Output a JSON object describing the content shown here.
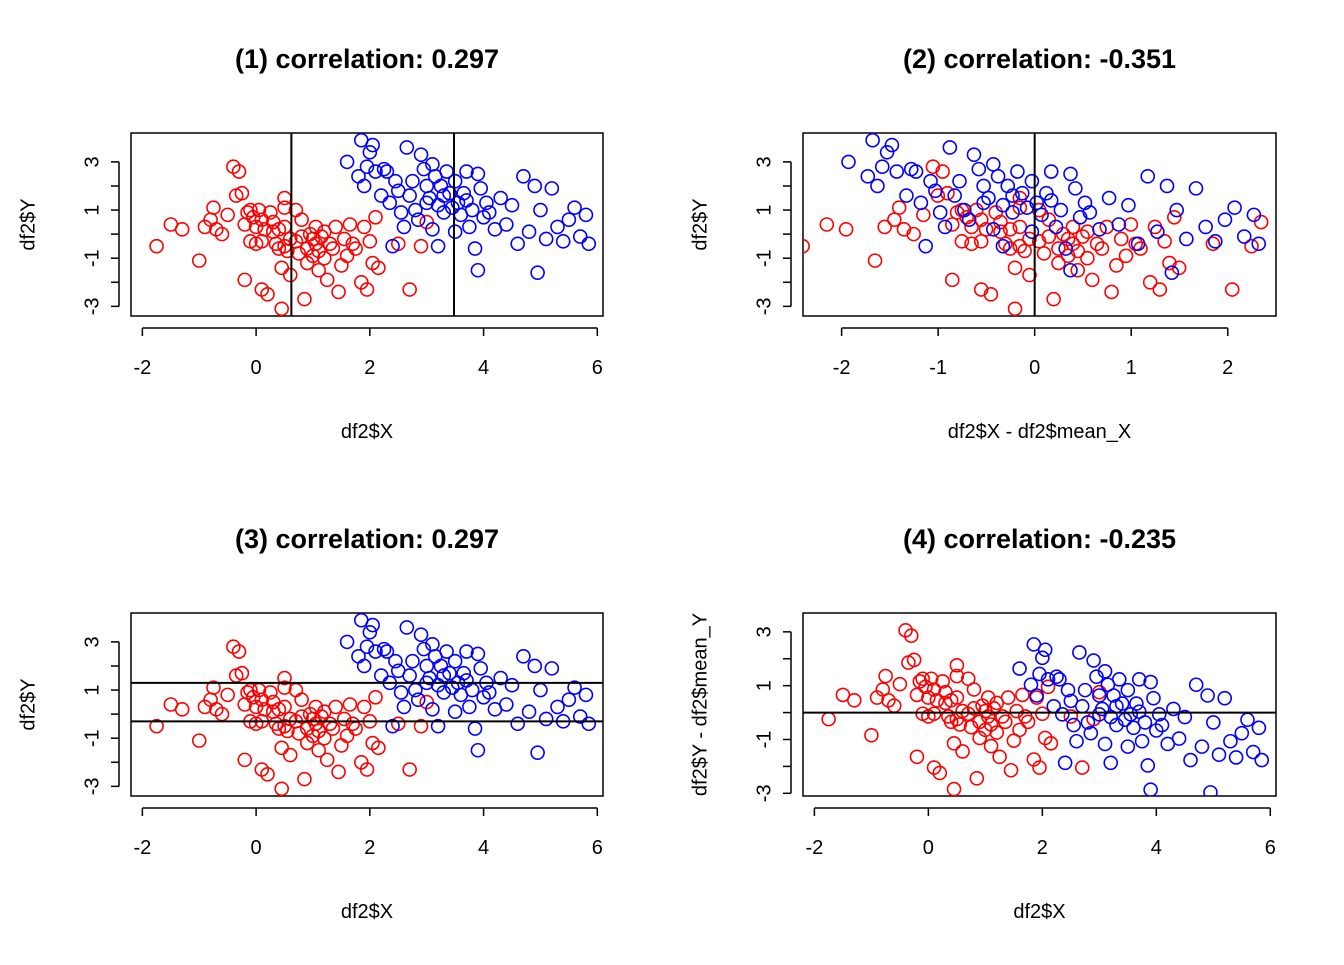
{
  "figure": {
    "colors": {
      "red": "#ff0000",
      "blue": "#0000ff"
    },
    "panels": [
      {
        "title": "(1) correlation: 0.297",
        "xlabel": "df2$X",
        "ylabel": "df2$Y",
        "xticks": [
          -2,
          0,
          2,
          4,
          6
        ],
        "yticks": [
          -3,
          -1,
          1,
          3
        ]
      },
      {
        "title": "(2) correlation: -0.351",
        "xlabel": "df2$X - df2$mean_X",
        "ylabel": "df2$Y",
        "xticks": [
          -2,
          -1,
          0,
          1,
          2
        ],
        "yticks": [
          -3,
          -1,
          1,
          3
        ]
      },
      {
        "title": "(3) correlation: 0.297",
        "xlabel": "df2$X",
        "ylabel": "df2$Y",
        "xticks": [
          -2,
          0,
          2,
          4,
          6
        ],
        "yticks": [
          -3,
          -1,
          1,
          3
        ]
      },
      {
        "title": "(4) correlation: -0.235",
        "xlabel": "df2$X",
        "ylabel": "df2$Y - df2$mean_Y",
        "xticks": [
          -2,
          0,
          2,
          4,
          6
        ],
        "yticks": [
          -3,
          -1,
          1,
          3
        ]
      }
    ]
  },
  "chart_data": [
    {
      "type": "scatter",
      "title": "(1) correlation: 0.297",
      "xlabel": "df2$X",
      "ylabel": "df2$Y",
      "xlim": [
        -2.2,
        6.1
      ],
      "ylim": [
        -3.4,
        4.2
      ],
      "grid": false,
      "vlines": [
        0.62,
        3.48
      ],
      "series": []
    },
    {
      "type": "scatter",
      "title": "(2) correlation: -0.351",
      "xlabel": "df2$X - df2$mean_X",
      "ylabel": "df2$Y",
      "xlim": [
        -2.4,
        2.5
      ],
      "ylim": [
        -3.4,
        4.2
      ],
      "grid": false,
      "vlines": [
        0
      ],
      "series": []
    },
    {
      "type": "scatter",
      "title": "(3) correlation: 0.297",
      "xlabel": "df2$X",
      "ylabel": "df2$Y",
      "xlim": [
        -2.2,
        6.1
      ],
      "ylim": [
        -3.4,
        4.2
      ],
      "grid": false,
      "hlines": [
        -0.3,
        1.3
      ],
      "series": []
    },
    {
      "type": "scatter",
      "title": "(4) correlation: -0.235",
      "xlabel": "df2$X",
      "ylabel": "df2$Y - df2$mean_Y",
      "xlim": [
        -2.2,
        6.1
      ],
      "ylim": [
        -3.1,
        3.7
      ],
      "grid": false,
      "hlines": [
        0
      ],
      "series": []
    }
  ],
  "points": {
    "red": [
      [
        -1.75,
        -0.5
      ],
      [
        -1.5,
        0.4
      ],
      [
        -1.3,
        0.2
      ],
      [
        -1.0,
        -1.1
      ],
      [
        -0.9,
        0.3
      ],
      [
        -0.8,
        0.6
      ],
      [
        -0.75,
        1.1
      ],
      [
        -0.7,
        0.2
      ],
      [
        -0.6,
        0.0
      ],
      [
        -0.5,
        0.8
      ],
      [
        -0.4,
        2.8
      ],
      [
        -0.35,
        1.6
      ],
      [
        -0.3,
        2.6
      ],
      [
        -0.25,
        1.7
      ],
      [
        -0.2,
        0.4
      ],
      [
        -0.2,
        -1.9
      ],
      [
        -0.15,
        0.9
      ],
      [
        -0.1,
        1.0
      ],
      [
        -0.1,
        -0.3
      ],
      [
        -0.05,
        0.7
      ],
      [
        0.0,
        0.3
      ],
      [
        0.0,
        -0.4
      ],
      [
        0.05,
        1.0
      ],
      [
        0.1,
        0.6
      ],
      [
        0.1,
        -0.3
      ],
      [
        0.1,
        -2.3
      ],
      [
        0.15,
        0.2
      ],
      [
        0.2,
        -2.5
      ],
      [
        0.25,
        0.9
      ],
      [
        0.3,
        0.5
      ],
      [
        0.3,
        0.1
      ],
      [
        0.35,
        -0.4
      ],
      [
        0.4,
        0.2
      ],
      [
        0.4,
        -0.6
      ],
      [
        0.45,
        -3.1
      ],
      [
        0.45,
        -1.4
      ],
      [
        0.5,
        1.5
      ],
      [
        0.5,
        1.1
      ],
      [
        0.5,
        0.3
      ],
      [
        0.5,
        -0.5
      ],
      [
        0.55,
        -0.7
      ],
      [
        0.6,
        -1.7
      ],
      [
        0.6,
        -0.2
      ],
      [
        0.7,
        1.0
      ],
      [
        0.7,
        -0.3
      ],
      [
        0.75,
        -0.8
      ],
      [
        0.8,
        0.6
      ],
      [
        0.8,
        -0.1
      ],
      [
        0.85,
        -2.7
      ],
      [
        0.9,
        -1.2
      ],
      [
        0.9,
        -0.6
      ],
      [
        0.95,
        0.0
      ],
      [
        1.0,
        -0.2
      ],
      [
        1.0,
        -0.9
      ],
      [
        1.05,
        0.3
      ],
      [
        1.05,
        -0.4
      ],
      [
        1.1,
        -1.5
      ],
      [
        1.1,
        -0.7
      ],
      [
        1.15,
        -0.1
      ],
      [
        1.2,
        0.1
      ],
      [
        1.2,
        -1.0
      ],
      [
        1.25,
        -1.9
      ],
      [
        1.3,
        -0.4
      ],
      [
        1.35,
        -0.6
      ],
      [
        1.4,
        0.3
      ],
      [
        1.45,
        -2.4
      ],
      [
        1.5,
        -1.3
      ],
      [
        1.55,
        -0.2
      ],
      [
        1.6,
        -0.9
      ],
      [
        1.65,
        0.4
      ],
      [
        1.7,
        -0.4
      ],
      [
        1.75,
        -0.6
      ],
      [
        1.85,
        -2.0
      ],
      [
        1.9,
        0.3
      ],
      [
        1.95,
        -2.3
      ],
      [
        2.0,
        -0.3
      ],
      [
        2.05,
        -1.2
      ],
      [
        2.1,
        0.7
      ],
      [
        2.15,
        -1.4
      ],
      [
        2.5,
        -0.4
      ],
      [
        2.7,
        -2.3
      ],
      [
        2.9,
        -0.5
      ],
      [
        3.0,
        0.5
      ]
    ],
    "blue": [
      [
        1.6,
        3.0
      ],
      [
        1.8,
        2.4
      ],
      [
        1.85,
        3.9
      ],
      [
        1.9,
        2.0
      ],
      [
        1.95,
        2.8
      ],
      [
        2.0,
        3.4
      ],
      [
        2.05,
        3.7
      ],
      [
        2.1,
        2.6
      ],
      [
        2.2,
        1.6
      ],
      [
        2.25,
        2.7
      ],
      [
        2.3,
        2.6
      ],
      [
        2.35,
        1.3
      ],
      [
        2.4,
        -0.5
      ],
      [
        2.45,
        2.2
      ],
      [
        2.5,
        1.8
      ],
      [
        2.55,
        0.9
      ],
      [
        2.6,
        0.3
      ],
      [
        2.65,
        3.6
      ],
      [
        2.7,
        1.6
      ],
      [
        2.75,
        2.2
      ],
      [
        2.8,
        1.0
      ],
      [
        2.85,
        0.6
      ],
      [
        2.9,
        3.3
      ],
      [
        2.95,
        2.7
      ],
      [
        3.0,
        2.0
      ],
      [
        3.05,
        1.5
      ],
      [
        3.1,
        2.9
      ],
      [
        3.15,
        2.4
      ],
      [
        3.2,
        1.2
      ],
      [
        3.25,
        2.0
      ],
      [
        3.3,
        0.9
      ],
      [
        3.35,
        2.6
      ],
      [
        3.4,
        1.7
      ],
      [
        3.45,
        1.1
      ],
      [
        3.5,
        2.2
      ],
      [
        3.55,
        1.3
      ],
      [
        3.6,
        0.8
      ],
      [
        3.65,
        1.7
      ],
      [
        3.7,
        2.6
      ],
      [
        3.75,
        0.3
      ],
      [
        3.8,
        1.0
      ],
      [
        3.85,
        -0.6
      ],
      [
        3.9,
        2.5
      ],
      [
        3.95,
        1.9
      ],
      [
        4.0,
        0.7
      ],
      [
        4.05,
        1.3
      ],
      [
        4.1,
        0.9
      ],
      [
        4.2,
        0.2
      ],
      [
        4.3,
        1.5
      ],
      [
        4.4,
        0.4
      ],
      [
        4.5,
        1.2
      ],
      [
        4.6,
        -0.4
      ],
      [
        4.7,
        2.4
      ],
      [
        4.8,
        0.1
      ],
      [
        4.9,
        2.0
      ],
      [
        5.0,
        1.0
      ],
      [
        5.1,
        -0.2
      ],
      [
        5.2,
        1.9
      ],
      [
        5.3,
        0.3
      ],
      [
        5.4,
        -0.3
      ],
      [
        5.5,
        0.6
      ],
      [
        5.6,
        1.1
      ],
      [
        5.7,
        -0.1
      ],
      [
        5.8,
        0.8
      ],
      [
        5.85,
        -0.4
      ],
      [
        3.2,
        -0.5
      ],
      [
        3.5,
        0.1
      ],
      [
        3.7,
        1.4
      ],
      [
        3.9,
        -1.5
      ],
      [
        4.95,
        -1.6
      ],
      [
        3.0,
        1.3
      ],
      [
        3.1,
        0.2
      ],
      [
        3.3,
        1.6
      ]
    ]
  }
}
